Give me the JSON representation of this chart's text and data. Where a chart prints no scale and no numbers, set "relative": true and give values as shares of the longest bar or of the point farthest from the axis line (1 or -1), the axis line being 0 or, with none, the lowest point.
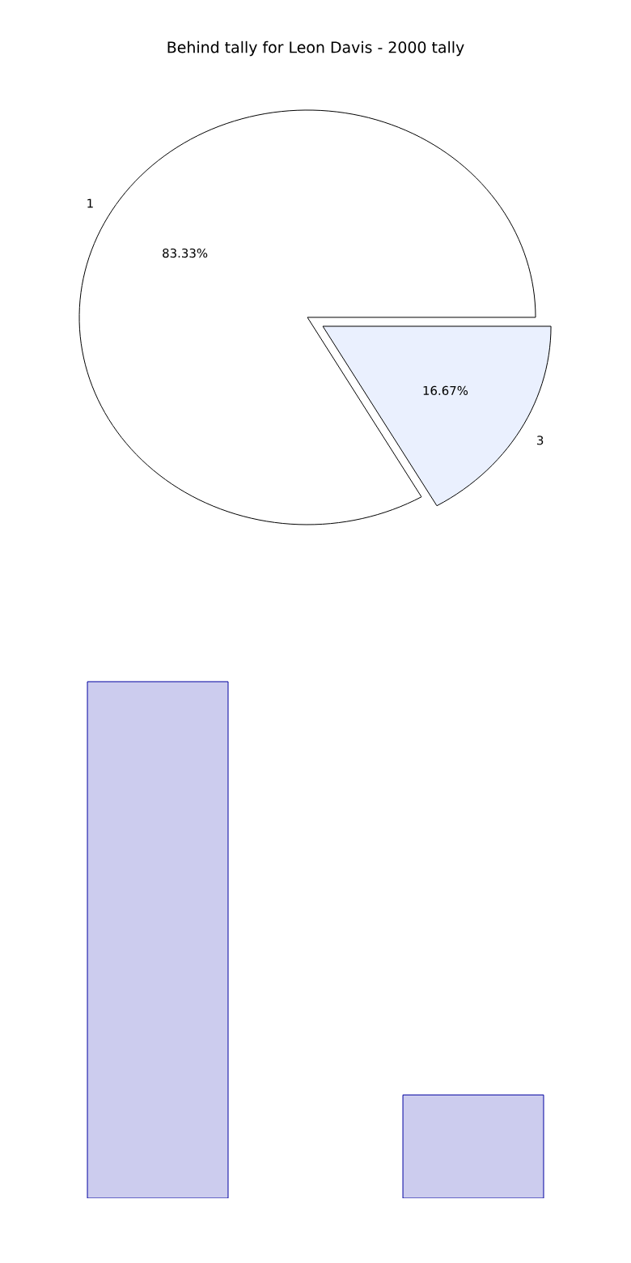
{
  "chart_data": [
    {
      "type": "pie",
      "title": "Behind tally for Leon Davis - 2000 tally",
      "categories": [
        "1",
        "3"
      ],
      "values": [
        83.33,
        16.67
      ],
      "value_labels": [
        "83.33%",
        "16.67%"
      ],
      "colors": [
        "#ffffff",
        "#eaf0fe"
      ]
    },
    {
      "type": "bar",
      "categories": [
        null,
        null
      ],
      "values": [
        1,
        0.2
      ],
      "color": "#ccccee",
      "relative": true
    }
  ]
}
